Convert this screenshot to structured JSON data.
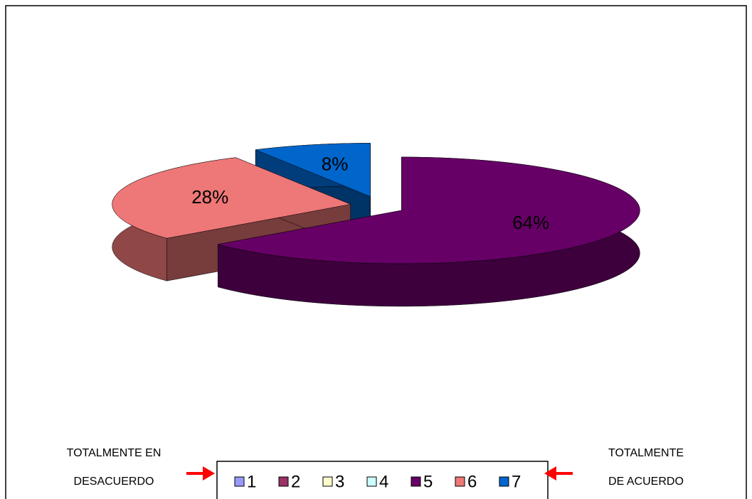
{
  "chart_data": {
    "type": "pie3d",
    "categories": [
      "1",
      "2",
      "3",
      "4",
      "5",
      "6",
      "7"
    ],
    "values": [
      0,
      0,
      0,
      0,
      64,
      28,
      8
    ],
    "value_labels": [
      null,
      null,
      null,
      null,
      "64%",
      "28%",
      "8%"
    ],
    "colors": [
      "#9999ff",
      "#993366",
      "#ffffcc",
      "#ccffff",
      "#660066",
      "#ee7777",
      "#0066cc"
    ],
    "left_note": [
      "TOTALMENTE EN",
      "DESACUERDO"
    ],
    "right_note": [
      "TOTALMENTE",
      "DE ACUERDO"
    ]
  }
}
